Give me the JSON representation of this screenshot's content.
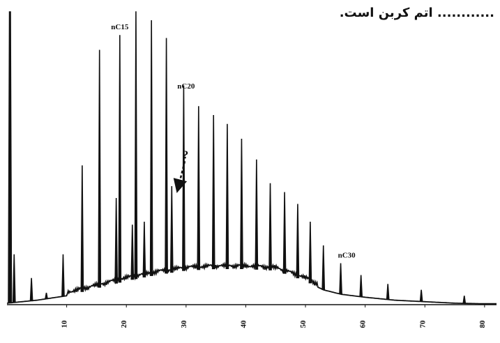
{
  "caption": "............ اتم کربن است.",
  "chart_data": {
    "type": "line",
    "title": "",
    "xlabel": "",
    "ylabel": "",
    "xlim": [
      0,
      82
    ],
    "ylim": [
      0,
      100
    ],
    "xticks": [
      10,
      20,
      30,
      40,
      50,
      60,
      70,
      80
    ],
    "xtick_labels": [
      "10",
      "20",
      "30",
      "40",
      "50",
      "60",
      "70",
      "80"
    ],
    "baseline": {
      "x": [
        0,
        5,
        10,
        15,
        20,
        25,
        30,
        35,
        40,
        45,
        50,
        53,
        56,
        60,
        65,
        70,
        75,
        80,
        82
      ],
      "y": [
        0.5,
        1.5,
        3,
        5.5,
        8,
        10,
        11.5,
        12,
        12,
        11.5,
        8,
        5,
        3.5,
        2.5,
        1.5,
        1,
        0.5,
        0.3,
        0.3
      ]
    },
    "peaks": [
      {
        "x": 0.5,
        "y": 99
      },
      {
        "x": 1.2,
        "y": 17
      },
      {
        "x": 4.1,
        "y": 9
      },
      {
        "x": 6.6,
        "y": 4
      },
      {
        "x": 9.4,
        "y": 17
      },
      {
        "x": 12.6,
        "y": 47
      },
      {
        "x": 15.5,
        "y": 86
      },
      {
        "x": 18.3,
        "y": 36
      },
      {
        "x": 18.9,
        "y": 91
      },
      {
        "x": 21.0,
        "y": 27
      },
      {
        "x": 21.6,
        "y": 99
      },
      {
        "x": 23.0,
        "y": 28
      },
      {
        "x": 24.2,
        "y": 96
      },
      {
        "x": 26.7,
        "y": 90
      },
      {
        "x": 27.6,
        "y": 40
      },
      {
        "x": 29.6,
        "y": 74
      },
      {
        "x": 32.1,
        "y": 67
      },
      {
        "x": 34.6,
        "y": 64
      },
      {
        "x": 36.9,
        "y": 61
      },
      {
        "x": 39.3,
        "y": 56
      },
      {
        "x": 41.8,
        "y": 49
      },
      {
        "x": 44.1,
        "y": 41
      },
      {
        "x": 46.5,
        "y": 38
      },
      {
        "x": 48.7,
        "y": 34
      },
      {
        "x": 50.8,
        "y": 28
      },
      {
        "x": 53.0,
        "y": 20
      },
      {
        "x": 55.9,
        "y": 14
      },
      {
        "x": 59.3,
        "y": 10
      },
      {
        "x": 63.8,
        "y": 7
      },
      {
        "x": 69.4,
        "y": 5
      },
      {
        "x": 76.6,
        "y": 3
      }
    ],
    "annotations": [
      {
        "text": "nC15",
        "x": 18.9,
        "y": 92
      },
      {
        "text": "nC20",
        "x": 30.0,
        "y": 72
      },
      {
        "text": "nC30",
        "x": 56.9,
        "y": 15
      },
      {
        "text": "?",
        "x": 29.2,
        "y": 47
      }
    ]
  }
}
